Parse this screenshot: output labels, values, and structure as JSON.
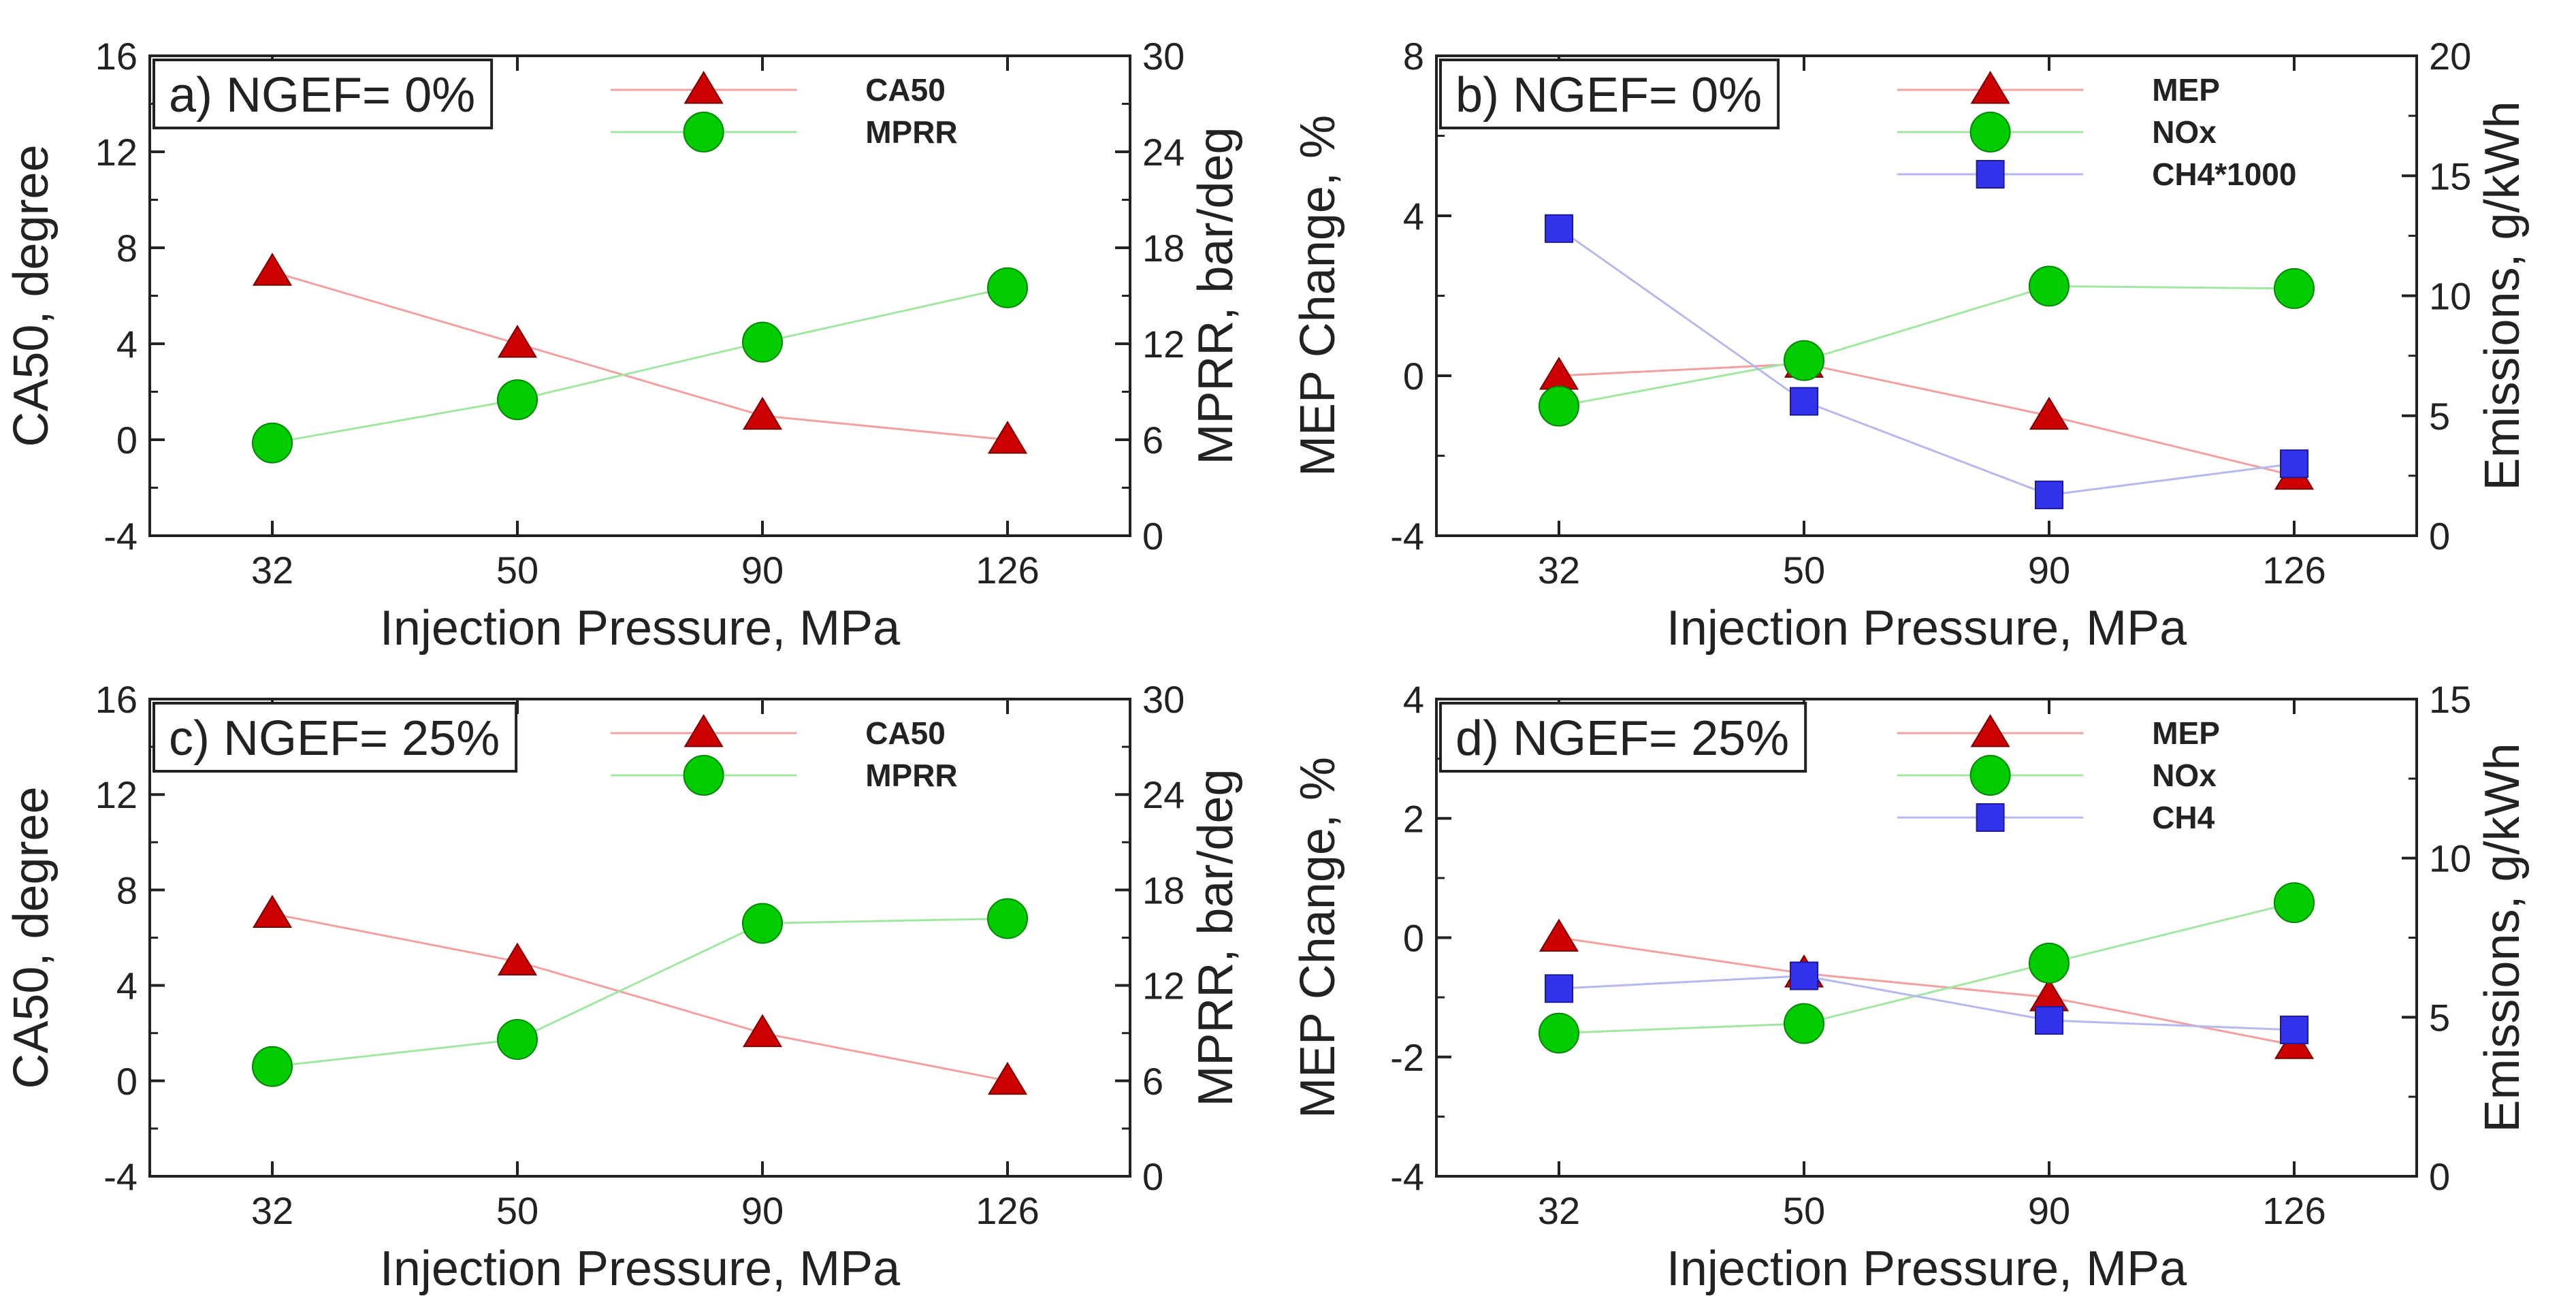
{
  "chart_data": [
    {
      "type": "line",
      "title": "a) NGEF= 0%",
      "xlabel": "Injection Pressure, MPa",
      "categories": [
        "32",
        "50",
        "90",
        "126"
      ],
      "ylabel": "CA50, degree",
      "ylim": [
        -4,
        16
      ],
      "yticks": [
        -4,
        0,
        4,
        8,
        12,
        16
      ],
      "y2label": "MPRR, bar/deg",
      "y2lim": [
        0,
        30
      ],
      "y2ticks": [
        0,
        6,
        12,
        18,
        24,
        30
      ],
      "legend_position": "top-right",
      "series": [
        {
          "name": "CA50",
          "axis": "left",
          "marker": "triangle",
          "color": "#cc0000",
          "line_color": "#f2a0a0",
          "values": [
            7,
            4,
            1,
            0
          ]
        },
        {
          "name": "MPRR",
          "axis": "right",
          "marker": "circle",
          "color": "#00cc00",
          "line_color": "#a0e8a0",
          "values": [
            5.8,
            8.5,
            12.1,
            15.5
          ]
        }
      ]
    },
    {
      "type": "line",
      "title": "b) NGEF= 0%",
      "xlabel": "Injection Pressure, MPa",
      "categories": [
        "32",
        "50",
        "90",
        "126"
      ],
      "ylabel": "MEP Change, %",
      "ylim": [
        -4,
        8
      ],
      "yticks": [
        -4,
        0,
        4,
        8
      ],
      "y2label": "Emissions, g/kWh",
      "y2lim": [
        0,
        20
      ],
      "y2ticks": [
        0,
        5,
        10,
        15,
        20
      ],
      "legend_position": "top-right",
      "series": [
        {
          "name": "MEP",
          "axis": "left",
          "marker": "triangle",
          "color": "#cc0000",
          "line_color": "#f2a0a0",
          "values": [
            0,
            0.3,
            -1.0,
            -2.5
          ]
        },
        {
          "name": "NOx",
          "axis": "right",
          "marker": "circle",
          "color": "#00cc00",
          "line_color": "#a0e8a0",
          "values": [
            5.4,
            7.3,
            10.4,
            10.3
          ]
        },
        {
          "name": "CH4*1000",
          "axis": "right",
          "marker": "square",
          "color": "#3333ee",
          "line_color": "#b8b8f0",
          "values": [
            12.8,
            5.6,
            1.7,
            3.0
          ]
        }
      ]
    },
    {
      "type": "line",
      "title": "c) NGEF= 25%",
      "xlabel": "Injection Pressure, MPa",
      "categories": [
        "32",
        "50",
        "90",
        "126"
      ],
      "ylabel": "CA50, degree",
      "ylim": [
        -4,
        16
      ],
      "yticks": [
        -4,
        0,
        4,
        8,
        12,
        16
      ],
      "y2label": "MPRR, bar/deg",
      "y2lim": [
        0,
        30
      ],
      "y2ticks": [
        0,
        6,
        12,
        18,
        24,
        30
      ],
      "legend_position": "top-right",
      "series": [
        {
          "name": "CA50",
          "axis": "left",
          "marker": "triangle",
          "color": "#cc0000",
          "line_color": "#f2a0a0",
          "values": [
            7,
            5,
            2,
            0
          ]
        },
        {
          "name": "MPRR",
          "axis": "right",
          "marker": "circle",
          "color": "#00cc00",
          "line_color": "#a0e8a0",
          "values": [
            6.9,
            8.6,
            15.9,
            16.2
          ]
        }
      ]
    },
    {
      "type": "line",
      "title": "d) NGEF= 25%",
      "xlabel": "Injection Pressure, MPa",
      "categories": [
        "32",
        "50",
        "90",
        "126"
      ],
      "ylabel": "MEP Change, %",
      "ylim": [
        -4,
        4
      ],
      "yticks": [
        -4,
        -2,
        0,
        2,
        4
      ],
      "y2label": "Emissions, g/kWh",
      "y2lim": [
        0,
        15
      ],
      "y2ticks": [
        0,
        5,
        10,
        15
      ],
      "legend_position": "top-right",
      "series": [
        {
          "name": "MEP",
          "axis": "left",
          "marker": "triangle",
          "color": "#cc0000",
          "line_color": "#f2a0a0",
          "values": [
            0,
            -0.6,
            -1.0,
            -1.8
          ]
        },
        {
          "name": "NOx",
          "axis": "right",
          "marker": "circle",
          "color": "#00cc00",
          "line_color": "#a0e8a0",
          "values": [
            4.5,
            4.8,
            6.7,
            8.6
          ]
        },
        {
          "name": "CH4",
          "axis": "right",
          "marker": "square",
          "color": "#3333ee",
          "line_color": "#b8b8f0",
          "values": [
            5.9,
            6.3,
            4.9,
            4.6
          ]
        }
      ]
    }
  ]
}
